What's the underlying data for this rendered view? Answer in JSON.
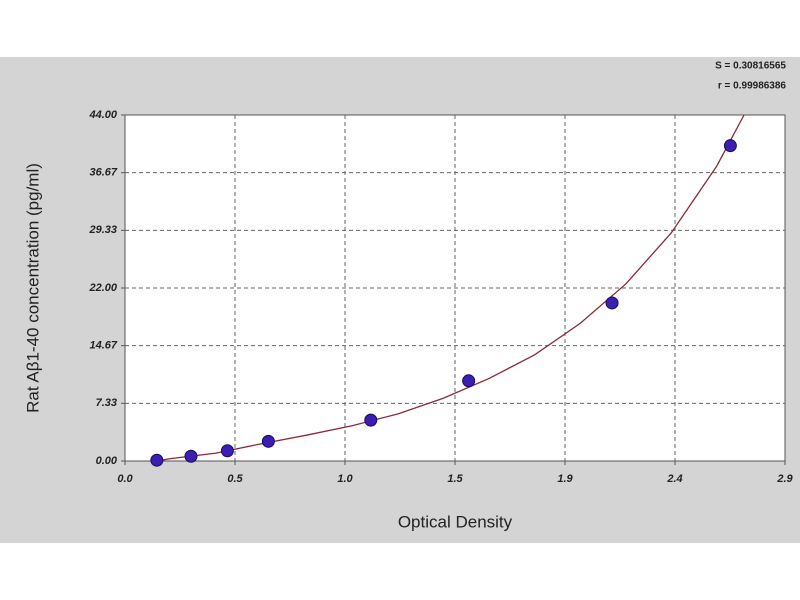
{
  "chart_data": {
    "type": "scatter",
    "x_label": "Optical Density",
    "y_label": "Rat Aβ1-40 concentration (pg/ml)",
    "annotations": [
      "S = 0.30816565",
      "r = 0.99986386"
    ],
    "x": [
      0.14,
      0.29,
      0.45,
      0.63,
      1.08,
      1.51,
      2.14,
      2.66
    ],
    "values": [
      0.1,
      0.6,
      1.3,
      2.5,
      5.2,
      10.2,
      20.1,
      40.1
    ],
    "color": "#3a1fb0",
    "fit": {
      "x": [
        0.14,
        0.2,
        0.4,
        0.6,
        0.8,
        1.0,
        1.2,
        1.4,
        1.6,
        1.8,
        2.0,
        2.2,
        2.4,
        2.6,
        2.72
      ],
      "values": [
        0,
        0.3,
        1.0,
        2.2,
        3.3,
        4.5,
        6.0,
        8.0,
        10.5,
        13.5,
        17.5,
        22.5,
        29.0,
        37.5,
        44
      ],
      "color": "#8b2a3a"
    },
    "xlim": [
      0,
      2.9
    ],
    "ylim": [
      0,
      44
    ],
    "xticks": [
      {
        "value": 0,
        "label": "0.0"
      },
      {
        "value": 0.4833,
        "label": "0.5"
      },
      {
        "value": 0.9667,
        "label": "1.0"
      },
      {
        "value": 1.45,
        "label": "1.5"
      },
      {
        "value": 1.9333,
        "label": "1.9"
      },
      {
        "value": 2.4167,
        "label": "2.4"
      },
      {
        "value": 2.9,
        "label": "2.9"
      }
    ],
    "yticks": [
      {
        "value": 0,
        "label": "0.00"
      },
      {
        "value": 7.3333,
        "label": "7.33"
      },
      {
        "value": 14.6667,
        "label": "14.67"
      },
      {
        "value": 22,
        "label": "22.00"
      },
      {
        "value": 29.3333,
        "label": "29.33"
      },
      {
        "value": 36.6667,
        "label": "36.67"
      },
      {
        "value": 44,
        "label": "44.00"
      }
    ],
    "grid": true
  }
}
